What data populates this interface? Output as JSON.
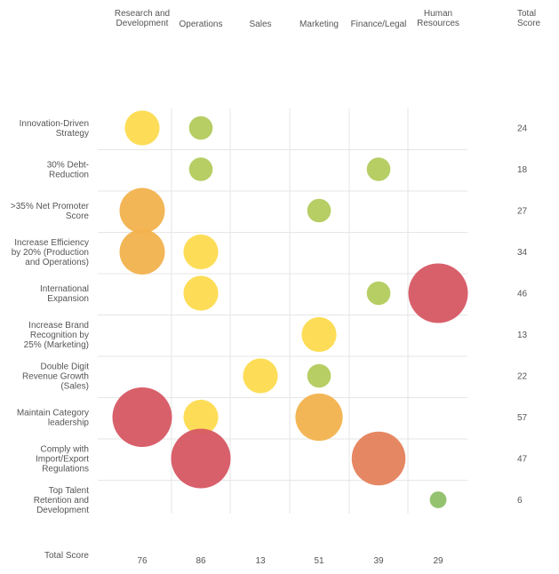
{
  "chart_data": {
    "type": "bubble-matrix",
    "columns": [
      "Research and Development",
      "Operations",
      "Sales",
      "Marketing",
      "Finance/Legal",
      "Human Resources"
    ],
    "column_header_lines": [
      [
        "Research and",
        "Development"
      ],
      [
        "Operations"
      ],
      [
        "Sales"
      ],
      [
        "Marketing"
      ],
      [
        "Finance/Legal"
      ],
      [
        "Human",
        "Resources"
      ]
    ],
    "rows": [
      {
        "label": "Innovation-Driven Strategy",
        "lines": [
          "Innovation-Driven",
          "Strategy"
        ],
        "total": 24
      },
      {
        "label": "30% Debt-Reduction",
        "lines": [
          "30% Debt-",
          "Reduction"
        ],
        "total": 18
      },
      {
        "label": ">35% Net Promoter Score",
        "lines": [
          ">35% Net Promoter",
          "Score"
        ],
        "total": 27
      },
      {
        "label": "Increase Efficiency by 20% (Production and Operations)",
        "lines": [
          "Increase Efficiency",
          "by 20% (Production",
          "and Operations)"
        ],
        "total": 34
      },
      {
        "label": "International Expansion",
        "lines": [
          "International",
          "Expansion"
        ],
        "total": 46
      },
      {
        "label": "Increase Brand Recognition by 25% (Marketing)",
        "lines": [
          "Increase Brand",
          "Recognition by",
          "25% (Marketing)"
        ],
        "total": 13
      },
      {
        "label": "Double Digit Revenue Growth (Sales)",
        "lines": [
          "Double Digit",
          "Revenue Growth",
          "(Sales)"
        ],
        "total": 22
      },
      {
        "label": "Maintain Category leadership",
        "lines": [
          "Maintain Category",
          "leadership"
        ],
        "total": 57
      },
      {
        "label": "Comply with Import/Export Regulations",
        "lines": [
          "Comply with",
          "Import/Export",
          "Regulations"
        ],
        "total": 47
      },
      {
        "label": "Top Talent Retention and Development",
        "lines": [
          "Top Talent",
          "Retention and",
          "Development"
        ],
        "total": 6
      }
    ],
    "total_score_label": "Total Score",
    "total_score_header_lines": [
      "Total",
      "Score"
    ],
    "column_totals": [
      76,
      86,
      13,
      51,
      39,
      29
    ],
    "bubbles": [
      {
        "row": 0,
        "col": 0,
        "size": 13,
        "color": "#fddb4e"
      },
      {
        "row": 0,
        "col": 1,
        "size": 6,
        "color": "#b2cb5c"
      },
      {
        "row": 1,
        "col": 1,
        "size": 6,
        "color": "#b2cb5c"
      },
      {
        "row": 1,
        "col": 4,
        "size": 6,
        "color": "#b2cb5c"
      },
      {
        "row": 2,
        "col": 0,
        "size": 22,
        "color": "#f2b24d"
      },
      {
        "row": 2,
        "col": 3,
        "size": 6,
        "color": "#b2cb5c"
      },
      {
        "row": 3,
        "col": 0,
        "size": 22,
        "color": "#f2b24d"
      },
      {
        "row": 3,
        "col": 1,
        "size": 13,
        "color": "#fddb4e"
      },
      {
        "row": 4,
        "col": 1,
        "size": 13,
        "color": "#fddb4e"
      },
      {
        "row": 4,
        "col": 4,
        "size": 6,
        "color": "#b2cb5c"
      },
      {
        "row": 4,
        "col": 5,
        "size": 38,
        "color": "#d65763"
      },
      {
        "row": 5,
        "col": 3,
        "size": 13,
        "color": "#fddb4e"
      },
      {
        "row": 6,
        "col": 2,
        "size": 13,
        "color": "#fddb4e"
      },
      {
        "row": 6,
        "col": 3,
        "size": 6,
        "color": "#b2cb5c"
      },
      {
        "row": 7,
        "col": 0,
        "size": 38,
        "color": "#d65763"
      },
      {
        "row": 7,
        "col": 1,
        "size": 13,
        "color": "#fddb4e"
      },
      {
        "row": 7,
        "col": 3,
        "size": 24,
        "color": "#f2b24d"
      },
      {
        "row": 8,
        "col": 1,
        "size": 38,
        "color": "#d65763"
      },
      {
        "row": 8,
        "col": 4,
        "size": 31,
        "color": "#e4815a"
      },
      {
        "row": 9,
        "col": 5,
        "size": 3,
        "color": "#8fbf67"
      }
    ],
    "grid": true,
    "gridline_color": "#e6e6e6",
    "text_color": "#555555"
  }
}
